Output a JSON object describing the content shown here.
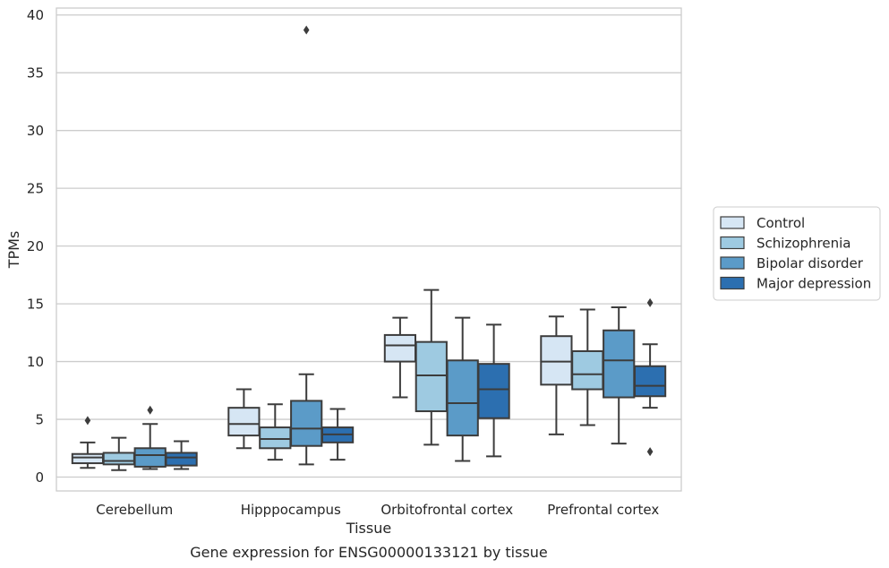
{
  "chart_data": {
    "type": "boxplot",
    "title": "Gene expression for ENSG00000133121 by tissue",
    "xlabel": "Tissue",
    "ylabel": "TPMs",
    "ylim": [
      -1.2,
      40.6
    ],
    "yticks": [
      0,
      5,
      10,
      15,
      20,
      25,
      30,
      35,
      40
    ],
    "grid": true,
    "legend_position": "right-center",
    "categories": [
      "Cerebellum",
      "Hipppocampus",
      "Orbitofrontal cortex",
      "Prefrontal cortex"
    ],
    "series": [
      {
        "name": "Control",
        "color": "#d6e6f4",
        "boxes": [
          {
            "whislo": 0.8,
            "q1": 1.2,
            "med": 1.7,
            "q3": 2.0,
            "whishi": 3.0,
            "fliers": [
              4.9
            ]
          },
          {
            "whislo": 2.5,
            "q1": 3.6,
            "med": 4.6,
            "q3": 6.0,
            "whishi": 7.6,
            "fliers": []
          },
          {
            "whislo": 6.9,
            "q1": 10.0,
            "med": 11.4,
            "q3": 12.3,
            "whishi": 13.8,
            "fliers": []
          },
          {
            "whislo": 3.7,
            "q1": 8.0,
            "med": 10.0,
            "q3": 12.2,
            "whishi": 13.9,
            "fliers": []
          }
        ]
      },
      {
        "name": "Schizophrenia",
        "color": "#9ecae1",
        "boxes": [
          {
            "whislo": 0.6,
            "q1": 1.1,
            "med": 1.4,
            "q3": 2.1,
            "whishi": 3.4,
            "fliers": []
          },
          {
            "whislo": 1.5,
            "q1": 2.5,
            "med": 3.3,
            "q3": 4.3,
            "whishi": 6.3,
            "fliers": []
          },
          {
            "whislo": 2.8,
            "q1": 5.7,
            "med": 8.8,
            "q3": 11.7,
            "whishi": 16.2,
            "fliers": []
          },
          {
            "whislo": 4.5,
            "q1": 7.6,
            "med": 8.9,
            "q3": 10.9,
            "whishi": 14.5,
            "fliers": []
          }
        ]
      },
      {
        "name": "Bipolar disorder",
        "color": "#5b9bc8",
        "boxes": [
          {
            "whislo": 0.7,
            "q1": 0.9,
            "med": 1.9,
            "q3": 2.5,
            "whishi": 4.6,
            "fliers": [
              5.8
            ]
          },
          {
            "whislo": 1.1,
            "q1": 2.7,
            "med": 4.2,
            "q3": 6.6,
            "whishi": 8.9,
            "fliers": [
              38.7
            ]
          },
          {
            "whislo": 1.4,
            "q1": 3.6,
            "med": 6.4,
            "q3": 10.1,
            "whishi": 13.8,
            "fliers": []
          },
          {
            "whislo": 2.9,
            "q1": 6.9,
            "med": 10.1,
            "q3": 12.7,
            "whishi": 14.7,
            "fliers": []
          }
        ]
      },
      {
        "name": "Major depression",
        "color": "#2c6fb0",
        "boxes": [
          {
            "whislo": 0.7,
            "q1": 1.0,
            "med": 1.7,
            "q3": 2.1,
            "whishi": 3.1,
            "fliers": []
          },
          {
            "whislo": 1.5,
            "q1": 3.0,
            "med": 3.7,
            "q3": 4.3,
            "whishi": 5.9,
            "fliers": []
          },
          {
            "whislo": 1.8,
            "q1": 5.1,
            "med": 7.6,
            "q3": 9.8,
            "whishi": 13.2,
            "fliers": []
          },
          {
            "whislo": 6.0,
            "q1": 7.0,
            "med": 7.9,
            "q3": 9.6,
            "whishi": 11.5,
            "fliers": [
              15.1,
              2.2
            ]
          }
        ]
      }
    ]
  }
}
